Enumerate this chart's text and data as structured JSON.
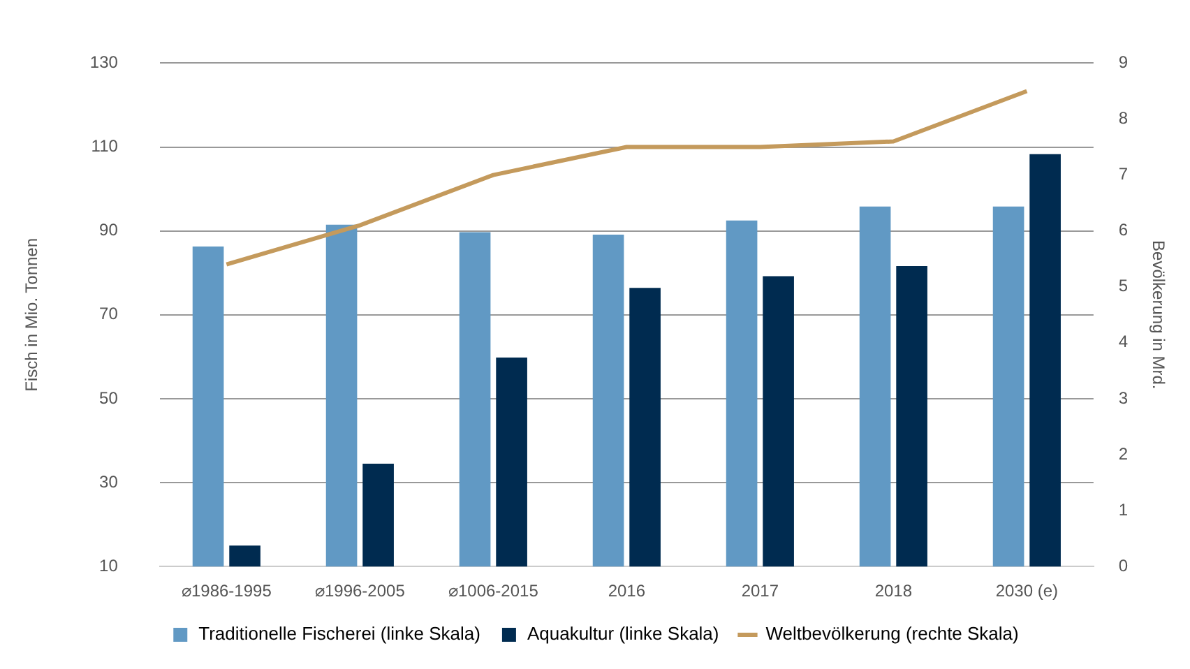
{
  "chart_data": {
    "type": "bar",
    "categories": [
      "⌀1986-1995",
      "⌀1996-2005",
      "⌀1006-2015",
      "2016",
      "2017",
      "2018",
      "2030 (e)"
    ],
    "series": [
      {
        "name": "Traditionelle Fischerei (linke Skala)",
        "color": "#6199c4",
        "values": [
          86.3,
          91.5,
          89.7,
          89.1,
          92.5,
          95.8,
          95.8
        ]
      },
      {
        "name": "Aquakultur (linke Skala)",
        "color": "#002b50",
        "values": [
          15.0,
          34.5,
          59.8,
          76.4,
          79.2,
          81.6,
          108.3
        ]
      },
      {
        "name": "Weltbevölkerung (rechte Skala)",
        "type": "line",
        "axis": "y2",
        "color": "#c49a5c",
        "values": [
          5.4,
          6.1,
          7.0,
          7.5,
          7.5,
          7.6,
          8.5
        ]
      }
    ],
    "ylabel": "Fisch in Mio. Tonnen",
    "y2label": "Bevölkerung in Mrd.",
    "ylim": [
      10,
      130
    ],
    "yticks": [
      10,
      30,
      50,
      70,
      90,
      110,
      130
    ],
    "y2lim": [
      0,
      9
    ],
    "y2ticks": [
      0,
      1,
      2,
      3,
      4,
      5,
      6,
      7,
      8,
      9
    ],
    "grid": "y",
    "legend": "bottom",
    "marker": "none",
    "line_style": "solid"
  }
}
